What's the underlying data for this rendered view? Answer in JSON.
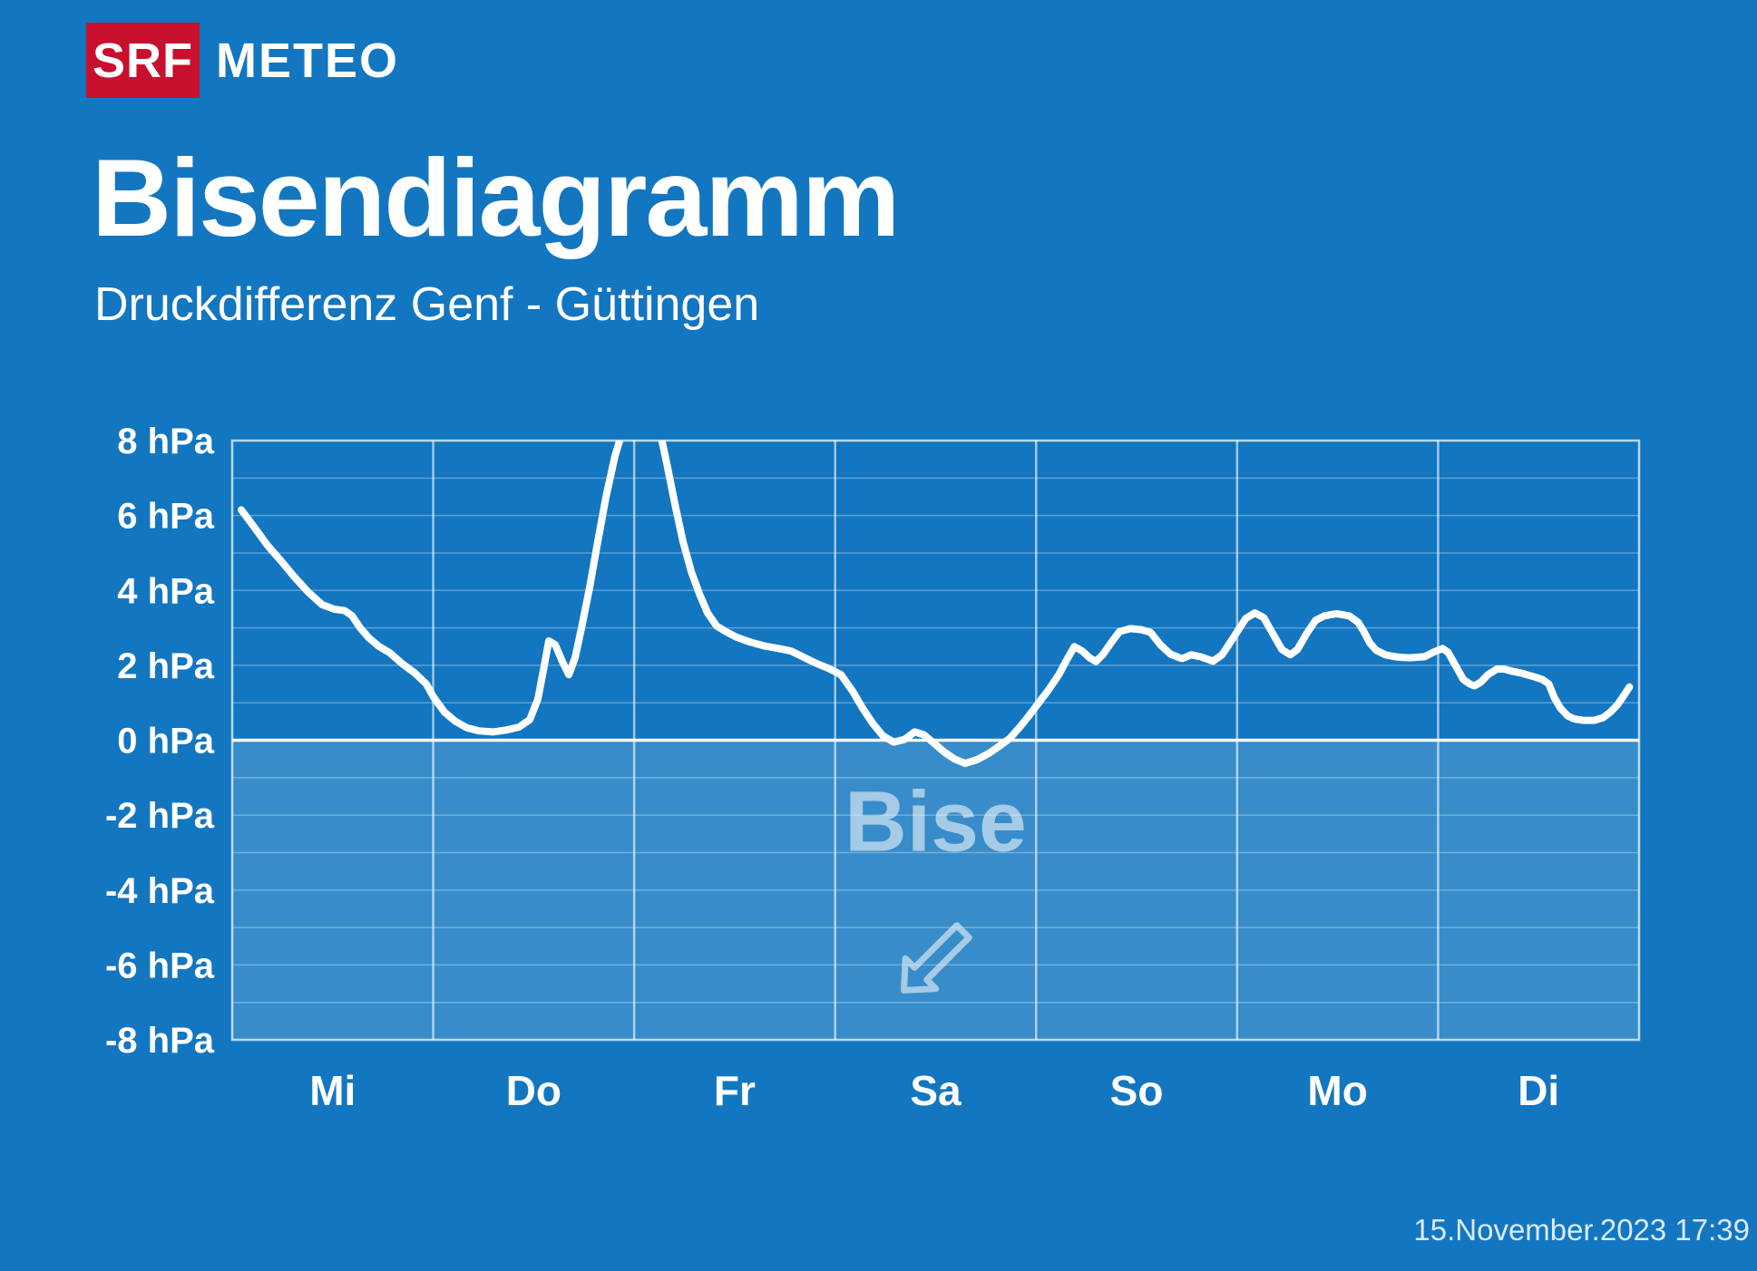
{
  "header": {
    "logo_srf": "SRF",
    "logo_meteo": "METEO"
  },
  "title": "Bisendiagramm",
  "subtitle": "Druckdifferenz Genf - Güttingen",
  "footer": {
    "timestamp": "15.November.2023 17:39"
  },
  "colors": {
    "background": "#1376c0",
    "srf_red": "#c8102e",
    "line": "#ffffff",
    "text": "#ffffff",
    "annotation": "rgba(255,255,255,0.55)",
    "negative_fill": "rgba(255,255,255,0.16)",
    "grid_minor": "rgba(255,255,255,0.30)",
    "grid_day": "rgba(255,255,255,0.60)",
    "zero_line": "rgba(255,255,255,0.95)",
    "border": "rgba(255,255,255,0.70)"
  },
  "chart_data": {
    "type": "line",
    "title": "Bisendiagramm",
    "subtitle": "Druckdifferenz Genf - Güttingen",
    "xlabel": "",
    "ylabel": "hPa",
    "ylim": [
      -8,
      8
    ],
    "grid": true,
    "ygrid_step": 1,
    "legend": "none",
    "yticks": [
      "8 hPa",
      "6 hPa",
      "4 hPa",
      "2 hPa",
      "0 hPa",
      "-2 hPa",
      "-4 hPa",
      "-6 hPa",
      "-8 hPa"
    ],
    "ytick_values": [
      8,
      6,
      4,
      2,
      0,
      -2,
      -4,
      -6,
      -8
    ],
    "categories": [
      "Mi",
      "Do",
      "Fr",
      "Sa",
      "So",
      "Mo",
      "Di"
    ],
    "annotation": {
      "label": "Bise",
      "arrow_direction": "southwest",
      "x_day": 3.5,
      "label_y_hpa": -2.18,
      "arrow_y_hpa": -5.82
    },
    "series": [
      {
        "name": "Druckdifferenz Genf - Güttingen (hPa)",
        "x_unit": "days (0 = start Mi, 7 = end Di)",
        "points": [
          [
            0.045,
            6.15
          ],
          [
            0.108,
            5.7
          ],
          [
            0.176,
            5.2
          ],
          [
            0.244,
            4.78
          ],
          [
            0.311,
            4.35
          ],
          [
            0.379,
            3.95
          ],
          [
            0.447,
            3.62
          ],
          [
            0.506,
            3.5
          ],
          [
            0.56,
            3.46
          ],
          [
            0.596,
            3.32
          ],
          [
            0.637,
            3.0
          ],
          [
            0.682,
            2.72
          ],
          [
            0.731,
            2.5
          ],
          [
            0.785,
            2.33
          ],
          [
            0.844,
            2.05
          ],
          [
            0.907,
            1.8
          ],
          [
            0.966,
            1.5
          ],
          [
            1.002,
            1.15
          ],
          [
            1.056,
            0.75
          ],
          [
            1.111,
            0.5
          ],
          [
            1.169,
            0.33
          ],
          [
            1.228,
            0.25
          ],
          [
            1.296,
            0.22
          ],
          [
            1.363,
            0.27
          ],
          [
            1.427,
            0.35
          ],
          [
            1.481,
            0.55
          ],
          [
            1.521,
            1.1
          ],
          [
            1.553,
            2.0
          ],
          [
            1.575,
            2.65
          ],
          [
            1.607,
            2.55
          ],
          [
            1.643,
            2.1
          ],
          [
            1.675,
            1.75
          ],
          [
            1.706,
            2.2
          ],
          [
            1.738,
            3.0
          ],
          [
            1.779,
            4.1
          ],
          [
            1.819,
            5.3
          ],
          [
            1.86,
            6.5
          ],
          [
            1.905,
            7.6
          ],
          [
            1.95,
            8.4
          ],
          [
            2.036,
            9.4
          ],
          [
            2.122,
            8.4
          ],
          [
            2.162,
            7.4
          ],
          [
            2.203,
            6.3
          ],
          [
            2.243,
            5.3
          ],
          [
            2.284,
            4.5
          ],
          [
            2.325,
            3.9
          ],
          [
            2.365,
            3.4
          ],
          [
            2.41,
            3.05
          ],
          [
            2.456,
            2.9
          ],
          [
            2.51,
            2.75
          ],
          [
            2.578,
            2.62
          ],
          [
            2.645,
            2.52
          ],
          [
            2.718,
            2.45
          ],
          [
            2.781,
            2.38
          ],
          [
            2.849,
            2.2
          ],
          [
            2.907,
            2.05
          ],
          [
            2.966,
            1.92
          ],
          [
            3.029,
            1.75
          ],
          [
            3.088,
            1.3
          ],
          [
            3.137,
            0.85
          ],
          [
            3.187,
            0.45
          ],
          [
            3.237,
            0.12
          ],
          [
            3.291,
            -0.05
          ],
          [
            3.345,
            0.02
          ],
          [
            3.395,
            0.22
          ],
          [
            3.44,
            0.15
          ],
          [
            3.485,
            -0.05
          ],
          [
            3.539,
            -0.3
          ],
          [
            3.593,
            -0.5
          ],
          [
            3.647,
            -0.62
          ],
          [
            3.706,
            -0.52
          ],
          [
            3.765,
            -0.35
          ],
          [
            3.819,
            -0.15
          ],
          [
            3.869,
            0.05
          ],
          [
            3.919,
            0.35
          ],
          [
            3.964,
            0.65
          ],
          [
            4.013,
            1.0
          ],
          [
            4.063,
            1.35
          ],
          [
            4.113,
            1.75
          ],
          [
            4.158,
            2.2
          ],
          [
            4.19,
            2.5
          ],
          [
            4.23,
            2.38
          ],
          [
            4.266,
            2.2
          ],
          [
            4.298,
            2.1
          ],
          [
            4.334,
            2.3
          ],
          [
            4.375,
            2.62
          ],
          [
            4.415,
            2.9
          ],
          [
            4.469,
            2.98
          ],
          [
            4.524,
            2.95
          ],
          [
            4.569,
            2.88
          ],
          [
            4.618,
            2.55
          ],
          [
            4.668,
            2.3
          ],
          [
            4.713,
            2.2
          ],
          [
            4.727,
            2.18
          ],
          [
            4.772,
            2.28
          ],
          [
            4.817,
            2.23
          ],
          [
            4.88,
            2.11
          ],
          [
            4.925,
            2.28
          ],
          [
            4.984,
            2.76
          ],
          [
            5.043,
            3.25
          ],
          [
            5.088,
            3.4
          ],
          [
            5.133,
            3.27
          ],
          [
            5.178,
            2.84
          ],
          [
            5.223,
            2.42
          ],
          [
            5.264,
            2.28
          ],
          [
            5.3,
            2.42
          ],
          [
            5.345,
            2.84
          ],
          [
            5.39,
            3.2
          ],
          [
            5.435,
            3.32
          ],
          [
            5.494,
            3.38
          ],
          [
            5.557,
            3.32
          ],
          [
            5.602,
            3.15
          ],
          [
            5.63,
            2.91
          ],
          [
            5.661,
            2.59
          ],
          [
            5.693,
            2.4
          ],
          [
            5.738,
            2.28
          ],
          [
            5.797,
            2.22
          ],
          [
            5.855,
            2.2
          ],
          [
            5.932,
            2.23
          ],
          [
            5.977,
            2.35
          ],
          [
            6.022,
            2.45
          ],
          [
            6.049,
            2.35
          ],
          [
            6.067,
            2.18
          ],
          [
            6.099,
            1.87
          ],
          [
            6.126,
            1.62
          ],
          [
            6.158,
            1.5
          ],
          [
            6.18,
            1.45
          ],
          [
            6.212,
            1.55
          ],
          [
            6.248,
            1.75
          ],
          [
            6.293,
            1.9
          ],
          [
            6.329,
            1.9
          ],
          [
            6.361,
            1.85
          ],
          [
            6.415,
            1.79
          ],
          [
            6.474,
            1.7
          ],
          [
            6.519,
            1.62
          ],
          [
            6.551,
            1.5
          ],
          [
            6.578,
            1.14
          ],
          [
            6.609,
            0.85
          ],
          [
            6.645,
            0.65
          ],
          [
            6.677,
            0.57
          ],
          [
            6.722,
            0.53
          ],
          [
            6.776,
            0.53
          ],
          [
            6.821,
            0.6
          ],
          [
            6.857,
            0.75
          ],
          [
            6.893,
            0.95
          ],
          [
            6.925,
            1.2
          ],
          [
            6.952,
            1.42
          ]
        ]
      }
    ]
  }
}
